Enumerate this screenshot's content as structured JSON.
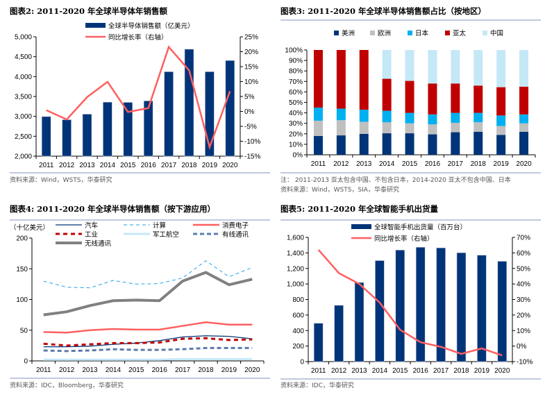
{
  "colors": {
    "navy": "#003478",
    "red": "#ff5f5f",
    "lightblue": "#c5e8f7",
    "grey": "#c0c0c0",
    "cyan": "#00b0f0",
    "darkred": "#c00000",
    "gray_line": "#808080",
    "slate": "#5b7bad",
    "rule": "#7f96be"
  },
  "chart_data": [
    {
      "type": "bar+line",
      "title": "图表2:  2011-2020 年全球半导体年销售额",
      "categories": [
        "2011",
        "2012",
        "2013",
        "2014",
        "2015",
        "2016",
        "2017",
        "2018",
        "2019",
        "2020"
      ],
      "series": [
        {
          "name": "全球半导体销售额（亿美元）",
          "type": "bar",
          "axis": "left",
          "values": [
            2995,
            2916,
            3056,
            3358,
            3352,
            3389,
            4122,
            4688,
            4123,
            4404
          ]
        },
        {
          "name": "同比增长率（右轴）",
          "type": "line",
          "axis": "right",
          "values": [
            0.4,
            -2.7,
            4.8,
            9.9,
            -0.2,
            1.1,
            21.6,
            13.7,
            -12.0,
            6.8
          ]
        }
      ],
      "ylim": [
        2000,
        5000
      ],
      "yticks": [
        "2,000",
        "2,500",
        "3,000",
        "3,500",
        "4,000",
        "4,500",
        "5,000"
      ],
      "y2lim": [
        -15,
        25
      ],
      "y2ticks": [
        "-15%",
        "-10%",
        "-5%",
        "0%",
        "5%",
        "10%",
        "15%",
        "20%",
        "25%"
      ],
      "legend": "top-center",
      "source": "资料来源：Wind，WSTS，华泰研究"
    },
    {
      "type": "stacked-bar-percent",
      "title": "图表3:  2011-2020 年全球半导体销售额占比（按地区）",
      "categories": [
        "2011",
        "2012",
        "2013",
        "2014",
        "2015",
        "2016",
        "2017",
        "2018",
        "2019",
        "2020"
      ],
      "series": [
        {
          "name": "美洲",
          "values": [
            18,
            18.5,
            20,
            20.5,
            20.5,
            19.5,
            21.5,
            22,
            19,
            22
          ]
        },
        {
          "name": "欧洲",
          "values": [
            14.5,
            14.5,
            11.5,
            10.5,
            9.5,
            9.5,
            9,
            9,
            8.5,
            8
          ]
        },
        {
          "name": "日本",
          "values": [
            12.5,
            11,
            11.5,
            11,
            10,
            9.5,
            9.5,
            9,
            10,
            8.5
          ]
        },
        {
          "name": "亚太",
          "values": [
            55,
            56,
            57,
            30.5,
            30.5,
            29.5,
            28,
            26,
            27,
            26.5
          ]
        },
        {
          "name": "中国",
          "values": [
            0,
            0,
            0,
            27.5,
            29.5,
            32,
            32,
            34,
            35.5,
            35
          ]
        }
      ],
      "ylim": [
        0,
        100
      ],
      "yticks": [
        "0%",
        "10%",
        "20%",
        "30%",
        "40%",
        "50%",
        "60%",
        "70%",
        "80%",
        "90%",
        "100%"
      ],
      "legend": "top",
      "note": "注：  2011-2013 亚太包含中国、不包含日本，2014-2020 亚太不包含中国、日本",
      "source": "资料来源：Wind，WSTS，SIA，华泰研究"
    },
    {
      "type": "line",
      "title": "图表4:  2011-2020 年全球半导体销售额（按下游应用）",
      "ylabel": "（十亿美元）",
      "categories": [
        "2011",
        "2012",
        "2013",
        "2014",
        "2015",
        "2016",
        "2017",
        "2018",
        "2019",
        "2020"
      ],
      "series": [
        {
          "name": "汽车",
          "values": [
            23,
            23,
            24,
            27,
            29,
            33,
            39,
            41,
            40,
            36
          ]
        },
        {
          "name": "计算",
          "values": [
            130,
            120,
            119,
            131,
            125,
            126,
            135,
            163,
            137,
            152
          ]
        },
        {
          "name": "消费电子",
          "values": [
            47,
            46,
            50,
            52,
            51,
            51,
            57,
            63,
            59,
            59
          ]
        },
        {
          "name": "工业",
          "values": [
            28,
            25,
            27,
            29,
            29,
            30,
            36,
            37,
            34,
            35
          ]
        },
        {
          "name": "军工航空",
          "values": [
            2,
            2,
            2,
            2,
            2,
            2,
            3,
            3,
            3,
            3
          ]
        },
        {
          "name": "有线通讯",
          "values": [
            17,
            16,
            17,
            19,
            18,
            18,
            19,
            21,
            21,
            21
          ]
        },
        {
          "name": "无线通讯",
          "values": [
            75,
            80,
            90,
            98,
            99,
            98,
            130,
            144,
            124,
            133
          ]
        }
      ],
      "ylim": [
        0,
        200
      ],
      "yticks": [
        "0",
        "50",
        "100",
        "150",
        "200"
      ],
      "legend": "top",
      "source": "资料来源：IDC，Bloomberg，华泰研究"
    },
    {
      "type": "bar+line",
      "title": "图表5:  2011-2020 年全球智能手机出货量",
      "categories": [
        "2011",
        "2012",
        "2013",
        "2014",
        "2015",
        "2016",
        "2017",
        "2018",
        "2019",
        "2020"
      ],
      "series": [
        {
          "name": "全球智能手机出货量（百万台）",
          "type": "bar",
          "axis": "left",
          "values": [
            494,
            725,
            1019,
            1301,
            1437,
            1473,
            1465,
            1402,
            1371,
            1292
          ]
        },
        {
          "name": "同比增长率（右轴）",
          "type": "line",
          "axis": "right",
          "values": [
            62,
            47,
            40,
            28,
            10.5,
            2.5,
            -0.5,
            -5,
            -1.5,
            -6
          ]
        }
      ],
      "ylim": [
        0,
        1600
      ],
      "yticks": [
        "0",
        "200",
        "400",
        "600",
        "800",
        "1,000",
        "1,200",
        "1,400",
        "1,600"
      ],
      "y2lim": [
        -10,
        70
      ],
      "y2ticks": [
        "-10%",
        "0%",
        "10%",
        "20%",
        "30%",
        "40%",
        "50%",
        "60%",
        "70%"
      ],
      "legend": "top-center",
      "source": "资料来源：IDC，华泰研究"
    }
  ]
}
